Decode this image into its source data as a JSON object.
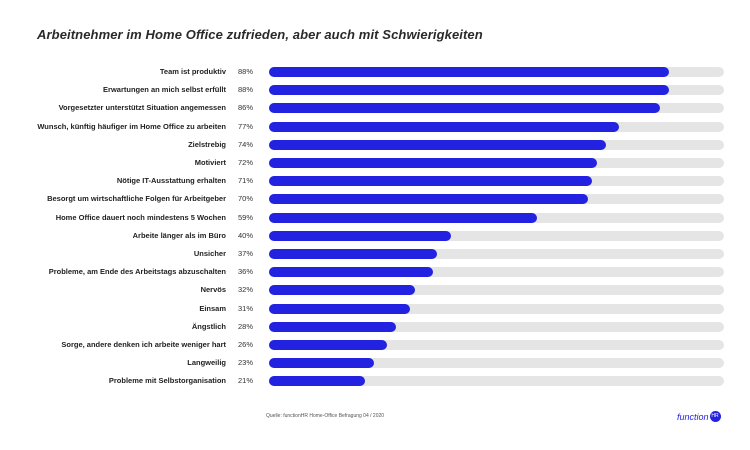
{
  "title": "Arbeitnehmer im Home Office zufrieden, aber auch mit Schwierigkeiten",
  "source": "Quelle: functionHR Home-Office Befragung 04 / 2020",
  "logo": {
    "text": "function",
    "badge": "HR"
  },
  "colors": {
    "bar": "#2222e0",
    "track": "#e5e5e5"
  },
  "chart_data": {
    "type": "bar",
    "orientation": "horizontal",
    "categories": [
      "Team ist produktiv",
      "Erwartungen an mich selbst erfüllt",
      "Vorgesetzter unterstützt Situation angemessen",
      "Wunsch, künftig häufiger im Home Office zu arbeiten",
      "Zielstrebig",
      "Motiviert",
      "Nötige IT-Ausstattung erhalten",
      "Besorgt um wirtschaftliche Folgen für Arbeitgeber",
      "Home Office dauert noch mindestens 5 Wochen",
      "Arbeite länger als im Büro",
      "Unsicher",
      "Probleme, am Ende des Arbeitstags abzuschalten",
      "Nervös",
      "Einsam",
      "Ängstlich",
      "Sorge, andere denken ich arbeite weniger hart",
      "Langweilig",
      "Probleme mit Selbstorganisation"
    ],
    "values": [
      88,
      88,
      86,
      77,
      74,
      72,
      71,
      70,
      59,
      40,
      37,
      36,
      32,
      31,
      28,
      26,
      23,
      21
    ],
    "labels": [
      "88%",
      "88%",
      "86%",
      "77%",
      "74%",
      "72%",
      "71%",
      "70%",
      "59%",
      "40%",
      "37%",
      "36%",
      "32%",
      "31%",
      "28%",
      "26%",
      "23%",
      "21%"
    ],
    "xlim": [
      0,
      100
    ],
    "grid": false,
    "legend": "none"
  }
}
